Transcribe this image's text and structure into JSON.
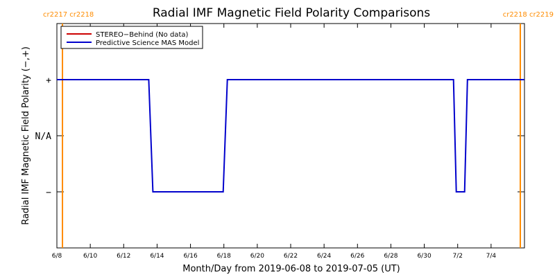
{
  "chart_data": {
    "type": "line",
    "title": "Radial IMF Magnetic Field Polarity Comparisons",
    "xlabel": "Month/Day from 2019-06-08 to 2019-07-05 (UT)",
    "ylabel": "Radial IMF Magnetic Field Polarity (−,+)",
    "x_range": [
      "2019-06-08",
      "2019-07-06"
    ],
    "x_ticks": [
      {
        "date": "2019-06-08",
        "label": "6/8"
      },
      {
        "date": "2019-06-10",
        "label": "6/10"
      },
      {
        "date": "2019-06-12",
        "label": "6/12"
      },
      {
        "date": "2019-06-14",
        "label": "6/14"
      },
      {
        "date": "2019-06-16",
        "label": "6/16"
      },
      {
        "date": "2019-06-18",
        "label": "6/18"
      },
      {
        "date": "2019-06-20",
        "label": "6/20"
      },
      {
        "date": "2019-06-22",
        "label": "6/22"
      },
      {
        "date": "2019-06-24",
        "label": "6/24"
      },
      {
        "date": "2019-06-26",
        "label": "6/26"
      },
      {
        "date": "2019-06-28",
        "label": "6/28"
      },
      {
        "date": "2019-06-30",
        "label": "6/30"
      },
      {
        "date": "2019-07-02",
        "label": "7/2"
      },
      {
        "date": "2019-07-04",
        "label": "7/4"
      }
    ],
    "y_range": [
      -2,
      2
    ],
    "y_ticks": [
      {
        "value": 1,
        "label": "+"
      },
      {
        "value": 0,
        "label": "N/A"
      },
      {
        "value": -1,
        "label": "−"
      }
    ],
    "carrington_markers": [
      {
        "date": "2019-06-08 08:00",
        "labels": [
          "cr2217",
          "cr2218"
        ],
        "side": "left"
      },
      {
        "date": "2019-07-05 18:00",
        "labels": [
          "cr2218",
          "cr2219"
        ],
        "side": "right"
      }
    ],
    "legend": {
      "placement": "top-left",
      "entries": [
        {
          "name": "STEREO−Behind (No data)",
          "color": "#cc0000"
        },
        {
          "name": "Predictive Science MAS Model",
          "color": "#0000cc"
        }
      ]
    },
    "series": [
      {
        "name": "Predictive Science MAS Model",
        "color": "#0000cc",
        "points": [
          {
            "x": "2019-06-08 00:00",
            "y": 1
          },
          {
            "x": "2019-06-13 12:00",
            "y": 1
          },
          {
            "x": "2019-06-13 18:00",
            "y": -1
          },
          {
            "x": "2019-06-17 23:00",
            "y": -1
          },
          {
            "x": "2019-06-18 05:00",
            "y": 1
          },
          {
            "x": "2019-07-01 18:00",
            "y": 1
          },
          {
            "x": "2019-07-01 22:00",
            "y": -1
          },
          {
            "x": "2019-07-02 10:00",
            "y": -1
          },
          {
            "x": "2019-07-02 14:00",
            "y": 1
          },
          {
            "x": "2019-07-06 00:00",
            "y": 1
          }
        ]
      },
      {
        "name": "STEREO−Behind (No data)",
        "color": "#cc0000",
        "points": []
      }
    ],
    "marker_color": "#ff8c00",
    "grid": false
  }
}
